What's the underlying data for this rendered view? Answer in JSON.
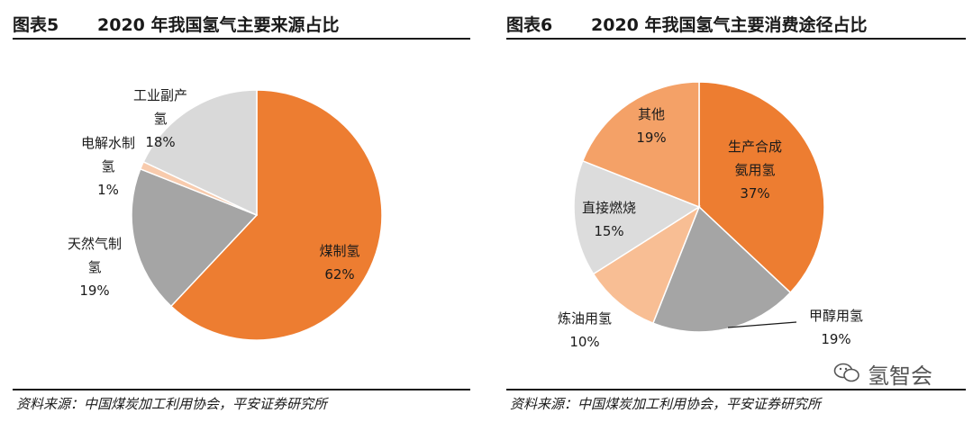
{
  "watermark": "氢智会",
  "charts": [
    {
      "fig_no": "图表5",
      "title": "2020 年我国氢气主要来源占比",
      "source": "资料来源：中国煤炭加工利用协会，平安证券研究所"
    },
    {
      "fig_no": "图表6",
      "title": "2020 年我国氢气主要消费途径占比",
      "source": "资料来源：中国煤炭加工利用协会，平安证券研究所"
    }
  ],
  "chart_data": [
    {
      "type": "pie",
      "title": "2020 年我国氢气主要来源占比",
      "start_angle_deg": 0,
      "direction": "clockwise",
      "slices": [
        {
          "label": "煤制氢",
          "value": 62,
          "value_label": "62%",
          "color": "#ED7D31"
        },
        {
          "label": "天然气制氢",
          "value": 19,
          "value_label": "19%",
          "color": "#A5A5A5"
        },
        {
          "label": "电解水制氢",
          "value": 1,
          "value_label": "1%",
          "color": "#F8CBAD"
        },
        {
          "label": "工业副产氢",
          "value": 18,
          "value_label": "18%",
          "color": "#D9D9D9"
        }
      ]
    },
    {
      "type": "pie",
      "title": "2020 年我国氢气主要消费途径占比",
      "start_angle_deg": 0,
      "direction": "clockwise",
      "slices": [
        {
          "label": "生产合成氨用氢",
          "value": 37,
          "value_label": "37%",
          "color": "#ED7D31"
        },
        {
          "label": "甲醇用氢",
          "value": 19,
          "value_label": "19%",
          "color": "#A5A5A5"
        },
        {
          "label": "炼油用氢",
          "value": 10,
          "value_label": "10%",
          "color": "#F8BE94"
        },
        {
          "label": "直接燃烧",
          "value": 15,
          "value_label": "15%",
          "color": "#DCDCDC"
        },
        {
          "label": "其他",
          "value": 19,
          "value_label": "19%",
          "color": "#F4A167"
        }
      ]
    }
  ]
}
